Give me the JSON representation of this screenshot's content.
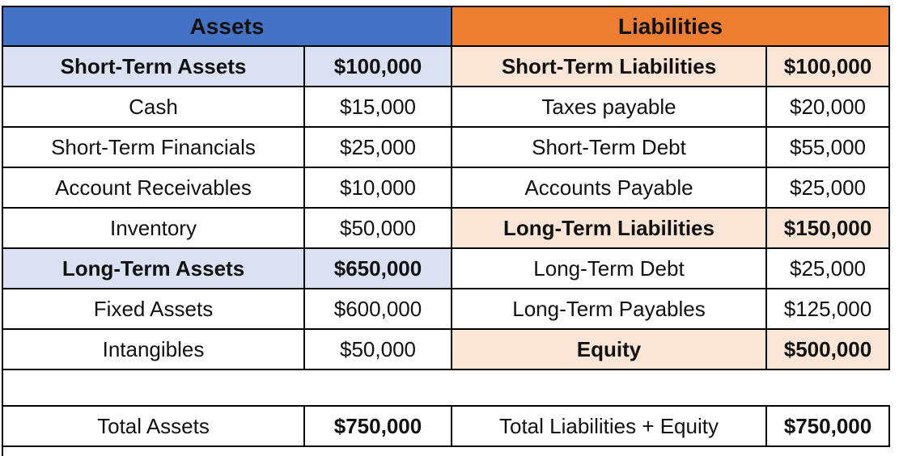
{
  "chart_data": {
    "type": "table",
    "description": "Balance sheet table with Assets section on the left and Liabilities section on the right",
    "header_row": [
      "Assets",
      "Liabilities"
    ],
    "rows": [
      [
        "Short-Term Assets",
        "$100,000",
        "Short-Term Liabilities",
        "$100,000"
      ],
      [
        "Cash",
        "$15,000",
        "Taxes payable",
        "$20,000"
      ],
      [
        "Short-Term Financials",
        "$25,000",
        "Short-Term Debt",
        "$55,000"
      ],
      [
        "Account Receivables",
        "$10,000",
        "Accounts Payable",
        "$25,000"
      ],
      [
        "Inventory",
        "$50,000",
        "Long-Term Liabilities",
        "$150,000"
      ],
      [
        "Long-Term Assets",
        "$650,000",
        "Long-Term Debt",
        "$25,000"
      ],
      [
        "Fixed Assets",
        "$600,000",
        "Long-Term Payables",
        "$125,000"
      ],
      [
        "Intangibles",
        "$50,000",
        "Equity",
        "$500,000"
      ],
      [
        "",
        "",
        "",
        ""
      ],
      [
        "Total Assets",
        "$750,000",
        "Total Liabilities + Equity",
        "$750,000"
      ]
    ],
    "styles": {
      "assets_header_bg": "#4472C4",
      "liabilities_header_bg": "#ED7D31",
      "assets_subtotal_bg": "#DAE1F2",
      "liabilities_subtotal_bg": "#FBE5D6",
      "border_color": "#000000",
      "grid": "on",
      "legend_position": "none"
    }
  }
}
